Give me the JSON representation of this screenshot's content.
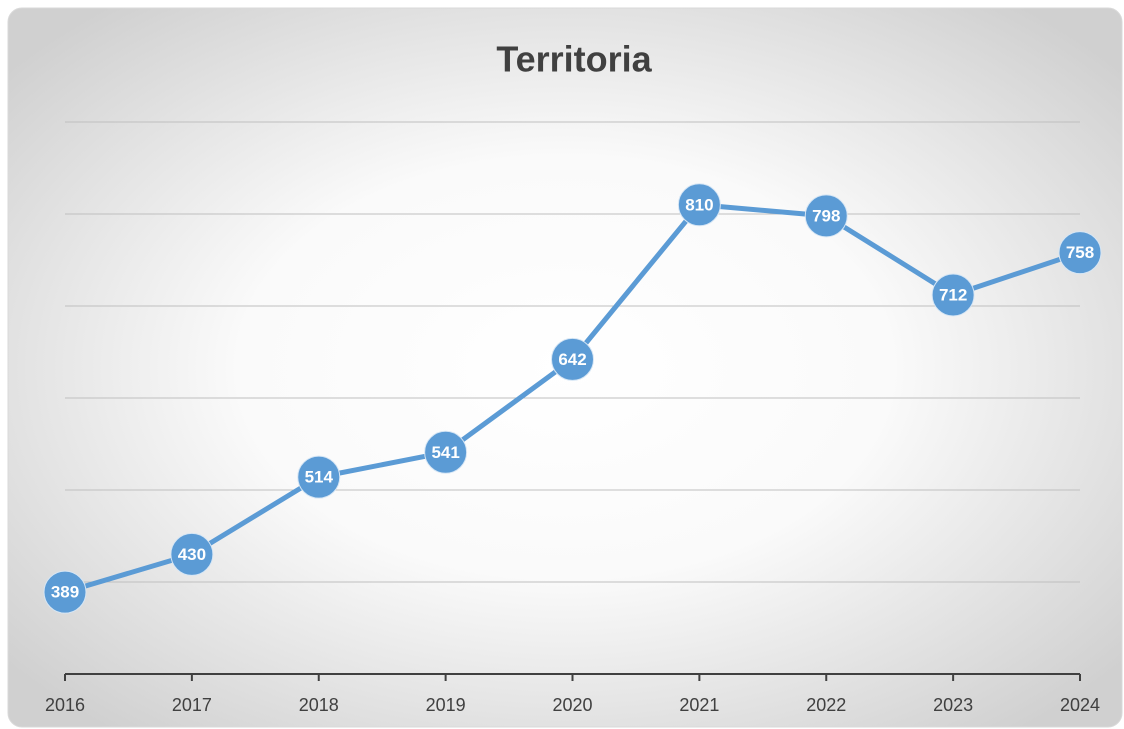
{
  "chart_data": {
    "type": "line",
    "title": "Territoria",
    "categories": [
      "2016",
      "2017",
      "2018",
      "2019",
      "2020",
      "2021",
      "2022",
      "2023",
      "2024"
    ],
    "values": [
      389,
      430,
      514,
      541,
      642,
      810,
      798,
      712,
      758
    ],
    "color": "#5b9bd5",
    "ylim": [
      300,
      900
    ],
    "yticks": [
      300,
      400,
      500,
      600,
      700,
      800,
      900
    ],
    "grid": true
  }
}
